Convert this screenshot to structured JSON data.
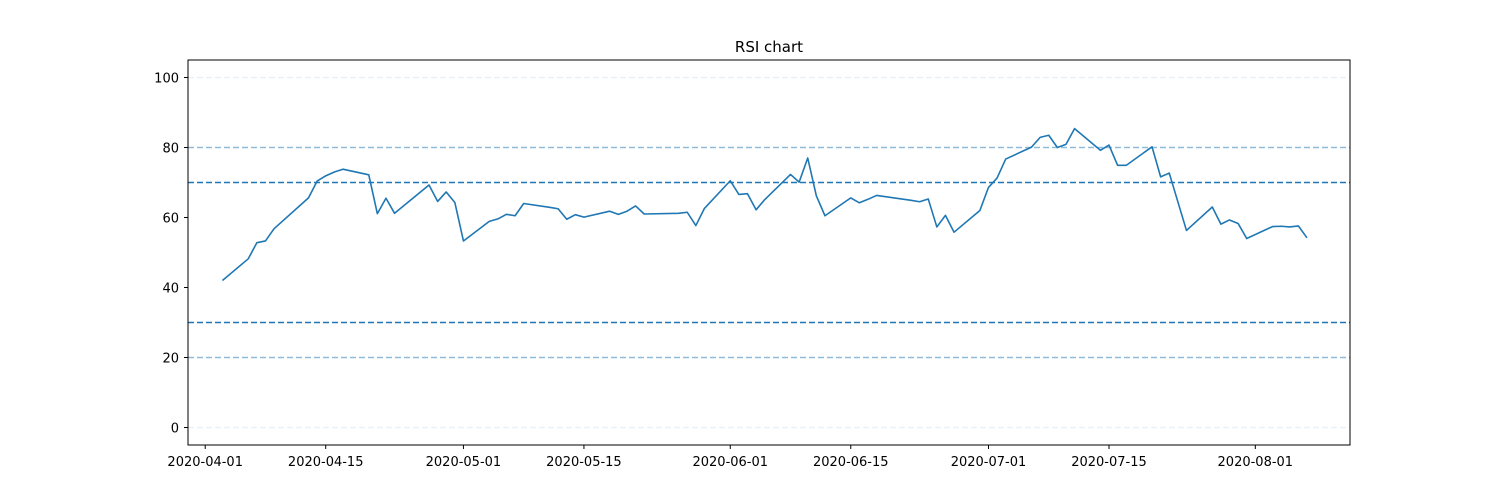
{
  "chart_data": {
    "type": "line",
    "title": "RSI chart",
    "xlabel": "",
    "ylabel": "",
    "x_range": [
      "2020-03-30",
      "2020-08-12"
    ],
    "ylim": [
      -5,
      105
    ],
    "grid": false,
    "legend": "none",
    "colors": {
      "line": "#1f77b4",
      "axis": "#000000",
      "background": "#ffffff"
    },
    "x_ticks": [
      "2020-04-01",
      "2020-04-15",
      "2020-05-01",
      "2020-05-15",
      "2020-06-01",
      "2020-06-15",
      "2020-07-01",
      "2020-07-15",
      "2020-08-01"
    ],
    "y_ticks": [
      0,
      20,
      40,
      60,
      80,
      100
    ],
    "reference_lines": [
      {
        "y": 0,
        "style": "dashed",
        "color": "#1f77b4",
        "opacity": 0.1
      },
      {
        "y": 100,
        "style": "dashed",
        "color": "#1f77b4",
        "opacity": 0.1
      },
      {
        "y": 20,
        "style": "dashed",
        "color": "#1f77b4",
        "opacity": 0.5
      },
      {
        "y": 80,
        "style": "dashed",
        "color": "#1f77b4",
        "opacity": 0.5
      },
      {
        "y": 30,
        "style": "dashed",
        "color": "#1f77b4",
        "opacity": 1.0
      },
      {
        "y": 70,
        "style": "dashed",
        "color": "#1f77b4",
        "opacity": 1.0
      }
    ],
    "series": [
      {
        "points": [
          [
            "2020-04-03",
            42.0
          ],
          [
            "2020-04-06",
            48.2
          ],
          [
            "2020-04-07",
            52.8
          ],
          [
            "2020-04-08",
            53.3
          ],
          [
            "2020-04-09",
            56.8
          ],
          [
            "2020-04-13",
            65.6
          ],
          [
            "2020-04-14",
            70.4
          ],
          [
            "2020-04-15",
            71.9
          ],
          [
            "2020-04-16",
            73.0
          ],
          [
            "2020-04-17",
            73.8
          ],
          [
            "2020-04-20",
            72.2
          ],
          [
            "2020-04-21",
            61.1
          ],
          [
            "2020-04-22",
            65.5
          ],
          [
            "2020-04-23",
            61.2
          ],
          [
            "2020-04-27",
            69.3
          ],
          [
            "2020-04-28",
            64.6
          ],
          [
            "2020-04-29",
            67.3
          ],
          [
            "2020-04-30",
            64.3
          ],
          [
            "2020-05-01",
            53.3
          ],
          [
            "2020-05-04",
            58.9
          ],
          [
            "2020-05-05",
            59.6
          ],
          [
            "2020-05-06",
            60.9
          ],
          [
            "2020-05-07",
            60.5
          ],
          [
            "2020-05-08",
            64.0
          ],
          [
            "2020-05-11",
            62.9
          ],
          [
            "2020-05-12",
            62.5
          ],
          [
            "2020-05-13",
            59.5
          ],
          [
            "2020-05-14",
            60.8
          ],
          [
            "2020-05-15",
            60.1
          ],
          [
            "2020-05-18",
            61.8
          ],
          [
            "2020-05-19",
            60.9
          ],
          [
            "2020-05-20",
            61.8
          ],
          [
            "2020-05-21",
            63.3
          ],
          [
            "2020-05-22",
            61.0
          ],
          [
            "2020-05-26",
            61.2
          ],
          [
            "2020-05-27",
            61.5
          ],
          [
            "2020-05-28",
            57.7
          ],
          [
            "2020-05-29",
            62.6
          ],
          [
            "2020-06-01",
            70.5
          ],
          [
            "2020-06-02",
            66.6
          ],
          [
            "2020-06-03",
            66.8
          ],
          [
            "2020-06-04",
            62.2
          ],
          [
            "2020-06-05",
            65.1
          ],
          [
            "2020-06-08",
            72.3
          ],
          [
            "2020-06-09",
            70.1
          ],
          [
            "2020-06-10",
            77.0
          ],
          [
            "2020-06-11",
            66.2
          ],
          [
            "2020-06-12",
            60.5
          ],
          [
            "2020-06-15",
            65.6
          ],
          [
            "2020-06-16",
            64.2
          ],
          [
            "2020-06-17",
            65.2
          ],
          [
            "2020-06-18",
            66.3
          ],
          [
            "2020-06-22",
            64.9
          ],
          [
            "2020-06-23",
            64.5
          ],
          [
            "2020-06-24",
            65.3
          ],
          [
            "2020-06-25",
            57.3
          ],
          [
            "2020-06-26",
            60.6
          ],
          [
            "2020-06-27",
            55.8
          ],
          [
            "2020-06-30",
            62.0
          ],
          [
            "2020-07-01",
            68.6
          ],
          [
            "2020-07-02",
            71.3
          ],
          [
            "2020-07-03",
            76.7
          ],
          [
            "2020-07-06",
            80.1
          ],
          [
            "2020-07-07",
            82.9
          ],
          [
            "2020-07-08",
            83.5
          ],
          [
            "2020-07-09",
            80.0
          ],
          [
            "2020-07-10",
            80.9
          ],
          [
            "2020-07-11",
            85.4
          ],
          [
            "2020-07-14",
            79.2
          ],
          [
            "2020-07-15",
            80.7
          ],
          [
            "2020-07-16",
            74.9
          ],
          [
            "2020-07-17",
            74.9
          ],
          [
            "2020-07-20",
            80.2
          ],
          [
            "2020-07-21",
            71.6
          ],
          [
            "2020-07-22",
            72.7
          ],
          [
            "2020-07-24",
            56.3
          ],
          [
            "2020-07-27",
            63.0
          ],
          [
            "2020-07-28",
            58.1
          ],
          [
            "2020-07-29",
            59.3
          ],
          [
            "2020-07-30",
            58.3
          ],
          [
            "2020-07-31",
            54.0
          ],
          [
            "2020-08-03",
            57.4
          ],
          [
            "2020-08-04",
            57.5
          ],
          [
            "2020-08-05",
            57.3
          ],
          [
            "2020-08-06",
            57.6
          ],
          [
            "2020-08-07",
            54.2
          ]
        ]
      }
    ]
  }
}
